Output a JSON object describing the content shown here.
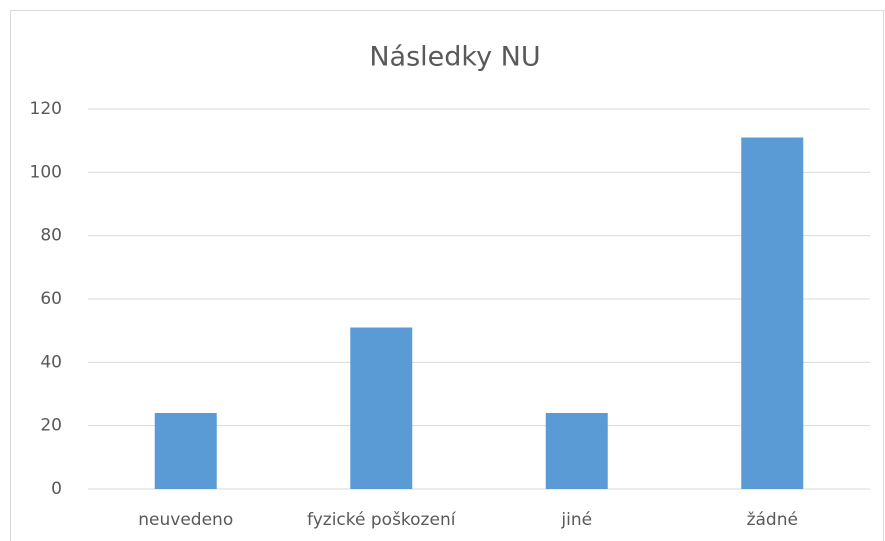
{
  "chart_data": {
    "type": "bar",
    "title": "Následky NU",
    "categories": [
      "neuvedeno",
      "fyzické poškození",
      "jiné",
      "žádné"
    ],
    "values": [
      24,
      51,
      24,
      111
    ],
    "color": "#5b9bd5",
    "ylim": [
      0,
      120
    ],
    "yticks": [
      0,
      20,
      40,
      60,
      80,
      100,
      120
    ],
    "grid": true
  }
}
